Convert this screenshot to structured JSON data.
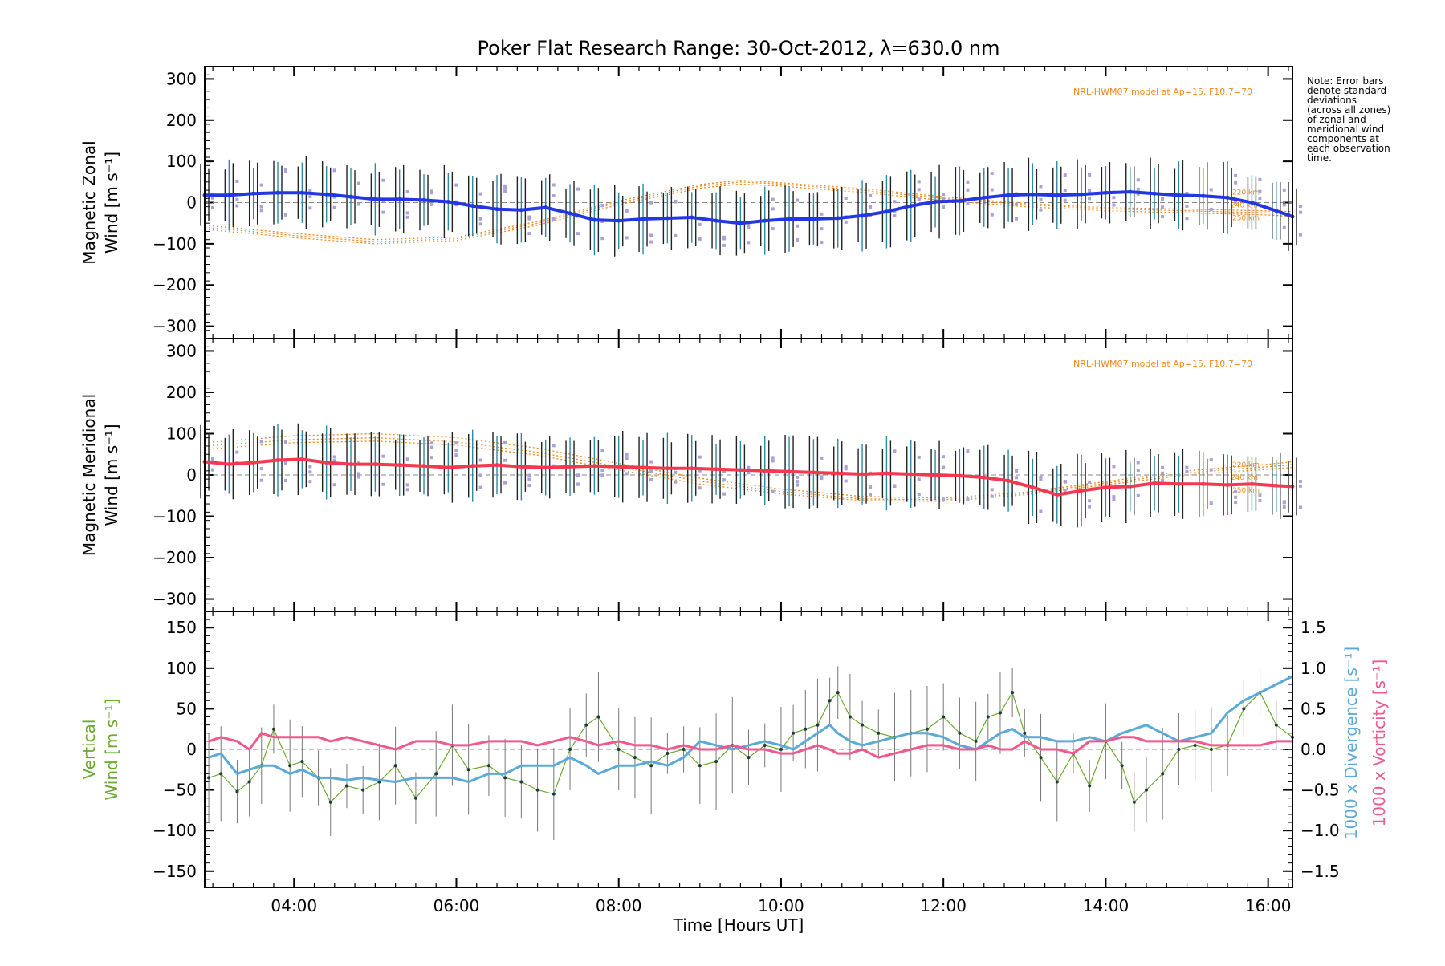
{
  "title": "Poker Flat Research Range: 30-Oct-2012, λ=630.0 nm",
  "note": [
    "Note: Error bars",
    "denote standard",
    "deviations",
    "(across all zones)",
    "of zonal and",
    "meridional wind",
    "components at",
    "each observation",
    "time."
  ],
  "model_label": "NRL-HWM07 model at Ap=15, F10.7=70",
  "colors": {
    "zonal": "#2336e6",
    "meridional": "#f5384f",
    "vertical": "#6aaa2e",
    "divergence": "#5aa9d6",
    "vorticity": "#f0588e",
    "model": "#f08a1e",
    "scatter": "#a9a3dc",
    "errorbar": "#222222"
  },
  "chart_data": [
    {
      "type": "line",
      "id": "zonal",
      "ylabel": [
        "Magnetic Zonal",
        "Wind [m s⁻¹]"
      ],
      "ylim": [
        -330,
        330
      ],
      "yticks": [
        300,
        200,
        100,
        0,
        -100,
        -200,
        -300
      ],
      "model_altitudes": [
        "220 km",
        "240 km",
        "250 km"
      ],
      "series": [
        {
          "x": [
            2.9,
            3.2,
            3.5,
            3.8,
            4.1,
            4.4,
            4.7,
            5.0,
            5.3,
            5.6,
            5.9,
            6.2,
            6.5,
            6.8,
            7.1,
            7.4,
            7.7,
            8.0,
            8.3,
            8.6,
            8.9,
            9.2,
            9.5,
            9.8,
            10.1,
            10.4,
            10.7,
            11.0,
            11.3,
            11.6,
            11.9,
            12.2,
            12.5,
            12.8,
            13.1,
            13.4,
            13.7,
            14.0,
            14.3,
            14.6,
            14.9,
            15.2,
            15.5,
            15.8,
            16.1,
            16.3
          ],
          "values": [
            18,
            18,
            22,
            24,
            24,
            20,
            14,
            8,
            8,
            6,
            2,
            -8,
            -16,
            -18,
            -12,
            -26,
            -42,
            -44,
            -40,
            -38,
            -36,
            -44,
            -50,
            -44,
            -40,
            -40,
            -38,
            -32,
            -22,
            -8,
            2,
            4,
            12,
            18,
            20,
            18,
            20,
            24,
            26,
            22,
            18,
            16,
            12,
            0,
            -20,
            -34
          ]
        }
      ],
      "model_series": [
        {
          "x": [
            2.9,
            4.0,
            5.0,
            6.0,
            7.0,
            8.0,
            9.0,
            9.5,
            10.0,
            11.0,
            12.0,
            13.0,
            14.0,
            15.0,
            16.0,
            16.3
          ],
          "values": [
            -60,
            -80,
            -95,
            -88,
            -50,
            0,
            40,
            50,
            45,
            30,
            10,
            -5,
            -15,
            -20,
            -25,
            -28
          ]
        },
        {
          "x": [
            2.9,
            4.0,
            5.0,
            6.0,
            7.0,
            8.0,
            9.0,
            9.5,
            10.0,
            11.0,
            12.0,
            13.0,
            14.0,
            15.0,
            16.0,
            16.3
          ],
          "values": [
            -65,
            -85,
            -100,
            -92,
            -55,
            -5,
            35,
            45,
            40,
            25,
            5,
            -10,
            -20,
            -25,
            -30,
            -34
          ]
        },
        {
          "x": [
            2.9,
            4.0,
            5.0,
            6.0,
            7.0,
            8.0,
            9.0,
            9.5,
            10.0,
            11.0,
            12.0,
            13.0,
            14.0,
            15.0,
            16.0,
            16.3
          ],
          "values": [
            -55,
            -75,
            -90,
            -84,
            -46,
            4,
            44,
            54,
            48,
            34,
            14,
            -2,
            -12,
            -16,
            -20,
            -22
          ]
        }
      ]
    },
    {
      "type": "line",
      "id": "meridional",
      "ylabel": [
        "Magnetic Meridional",
        "Wind [m s⁻¹]"
      ],
      "ylim": [
        -330,
        330
      ],
      "yticks": [
        300,
        200,
        100,
        0,
        -100,
        -200,
        -300
      ],
      "model_altitudes": [
        "220 km",
        "240 km",
        "250 km"
      ],
      "series": [
        {
          "x": [
            2.9,
            3.2,
            3.5,
            3.8,
            4.1,
            4.4,
            4.7,
            5.0,
            5.3,
            5.6,
            5.9,
            6.2,
            6.5,
            6.8,
            7.1,
            7.4,
            7.7,
            8.0,
            8.3,
            8.6,
            8.9,
            9.2,
            9.5,
            9.8,
            10.1,
            10.4,
            10.7,
            11.0,
            11.3,
            11.6,
            11.9,
            12.2,
            12.5,
            12.8,
            13.1,
            13.4,
            13.7,
            14.0,
            14.3,
            14.6,
            14.9,
            15.2,
            15.5,
            15.8,
            16.1,
            16.3
          ],
          "values": [
            32,
            26,
            30,
            36,
            38,
            30,
            26,
            26,
            24,
            22,
            18,
            22,
            24,
            20,
            18,
            20,
            22,
            20,
            18,
            16,
            16,
            14,
            12,
            10,
            8,
            6,
            4,
            2,
            4,
            2,
            0,
            -2,
            -6,
            -14,
            -30,
            -48,
            -38,
            -30,
            -28,
            -20,
            -22,
            -22,
            -24,
            -22,
            -26,
            -28
          ]
        }
      ],
      "model_series": [
        {
          "x": [
            2.9,
            4.0,
            5.0,
            6.0,
            7.0,
            8.0,
            9.0,
            10.0,
            11.0,
            12.0,
            13.0,
            14.0,
            15.0,
            16.0,
            16.3
          ],
          "values": [
            70,
            85,
            90,
            80,
            55,
            20,
            -15,
            -40,
            -58,
            -60,
            -45,
            -20,
            5,
            20,
            25
          ]
        },
        {
          "x": [
            2.9,
            4.0,
            5.0,
            6.0,
            7.0,
            8.0,
            9.0,
            10.0,
            11.0,
            12.0,
            13.0,
            14.0,
            15.0,
            16.0,
            16.3
          ],
          "values": [
            78,
            95,
            100,
            90,
            65,
            28,
            -8,
            -34,
            -52,
            -56,
            -42,
            -16,
            10,
            26,
            32
          ]
        },
        {
          "x": [
            2.9,
            4.0,
            5.0,
            6.0,
            7.0,
            8.0,
            9.0,
            10.0,
            11.0,
            12.0,
            13.0,
            14.0,
            15.0,
            16.0,
            16.3
          ],
          "values": [
            62,
            78,
            82,
            72,
            48,
            12,
            -22,
            -46,
            -62,
            -64,
            -48,
            -24,
            0,
            14,
            18
          ]
        }
      ]
    },
    {
      "type": "line",
      "id": "vertical",
      "ylabel": [
        "Vertical",
        "Wind [m s⁻¹]"
      ],
      "ylim": [
        -170,
        170
      ],
      "yticks": [
        150,
        100,
        50,
        0,
        -50,
        -100,
        -150
      ],
      "y2label_divergence": "1000 x Divergence [s⁻¹]",
      "y2label_vorticity": "1000 x Vorticity [s⁻¹]",
      "y2lim": [
        -1.7,
        1.7
      ],
      "y2ticks": [
        1.5,
        1.0,
        0.5,
        0.0,
        -0.5,
        -1.0,
        -1.5
      ],
      "x": [
        2.95,
        3.1,
        3.3,
        3.45,
        3.6,
        3.75,
        3.95,
        4.1,
        4.3,
        4.45,
        4.65,
        4.85,
        5.05,
        5.25,
        5.5,
        5.75,
        5.95,
        6.15,
        6.4,
        6.6,
        6.8,
        7.0,
        7.2,
        7.4,
        7.6,
        7.75,
        8.0,
        8.2,
        8.4,
        8.6,
        8.8,
        9.0,
        9.2,
        9.4,
        9.6,
        9.8,
        10.0,
        10.15,
        10.3,
        10.45,
        10.6,
        10.7,
        10.85,
        11.0,
        11.2,
        11.4,
        11.6,
        11.8,
        12.0,
        12.2,
        12.4,
        12.55,
        12.7,
        12.85,
        13.0,
        13.2,
        13.4,
        13.6,
        13.8,
        14.0,
        14.2,
        14.35,
        14.5,
        14.7,
        14.9,
        15.1,
        15.3,
        15.5,
        15.7,
        15.9,
        16.1,
        16.3
      ],
      "vertical_wind": [
        -35,
        -30,
        -52,
        -40,
        -20,
        25,
        -20,
        -15,
        -35,
        -65,
        -45,
        -50,
        -40,
        -20,
        -60,
        -30,
        5,
        -25,
        -20,
        -35,
        -40,
        -50,
        -55,
        0,
        30,
        40,
        0,
        -10,
        -20,
        -5,
        0,
        -20,
        -15,
        5,
        -10,
        5,
        0,
        20,
        25,
        30,
        60,
        70,
        40,
        30,
        20,
        15,
        20,
        25,
        40,
        20,
        10,
        40,
        45,
        70,
        20,
        -10,
        -40,
        -5,
        -45,
        10,
        -20,
        -65,
        -50,
        -30,
        0,
        5,
        0,
        5,
        50,
        70,
        30,
        15
      ],
      "divergence": [
        -0.1,
        -0.05,
        -0.3,
        -0.25,
        -0.2,
        -0.2,
        -0.3,
        -0.25,
        -0.35,
        -0.35,
        -0.38,
        -0.35,
        -0.38,
        -0.4,
        -0.35,
        -0.35,
        -0.35,
        -0.4,
        -0.3,
        -0.3,
        -0.2,
        -0.2,
        -0.2,
        -0.1,
        -0.2,
        -0.3,
        -0.2,
        -0.2,
        -0.15,
        -0.2,
        -0.1,
        0.1,
        0.05,
        0.0,
        0.05,
        0.1,
        0.05,
        0.0,
        0.1,
        0.2,
        0.3,
        0.2,
        0.1,
        0.05,
        0.1,
        0.15,
        0.2,
        0.2,
        0.15,
        0.05,
        0.0,
        0.1,
        0.2,
        0.25,
        0.15,
        0.15,
        0.1,
        0.1,
        0.15,
        0.1,
        0.2,
        0.25,
        0.3,
        0.2,
        0.1,
        0.15,
        0.2,
        0.45,
        0.6,
        0.7,
        0.8,
        0.9
      ],
      "vorticity": [
        0.1,
        0.15,
        0.1,
        0.0,
        0.2,
        0.15,
        0.15,
        0.15,
        0.15,
        0.1,
        0.15,
        0.1,
        0.05,
        0.0,
        0.1,
        0.1,
        0.05,
        0.05,
        0.1,
        0.1,
        0.1,
        0.05,
        0.1,
        0.15,
        0.1,
        0.05,
        0.1,
        0.05,
        0.05,
        0.0,
        0.05,
        0.0,
        0.0,
        0.05,
        0.0,
        0.0,
        -0.05,
        -0.05,
        0.0,
        0.05,
        0.0,
        -0.05,
        -0.05,
        0.0,
        -0.1,
        -0.05,
        0.0,
        0.05,
        0.05,
        0.0,
        0.0,
        0.05,
        0.0,
        0.0,
        0.1,
        0.0,
        0.0,
        -0.05,
        0.1,
        0.1,
        0.15,
        0.15,
        0.1,
        0.1,
        0.1,
        0.1,
        0.05,
        0.05,
        0.05,
        0.05,
        0.1,
        0.1
      ]
    }
  ],
  "x_axis": {
    "label": "Time [Hours UT]",
    "xlim": [
      2.9,
      16.3
    ],
    "ticks": [
      4,
      6,
      8,
      10,
      12,
      14,
      16
    ],
    "tick_labels": [
      "04:00",
      "06:00",
      "08:00",
      "10:00",
      "12:00",
      "14:00",
      "16:00"
    ]
  }
}
